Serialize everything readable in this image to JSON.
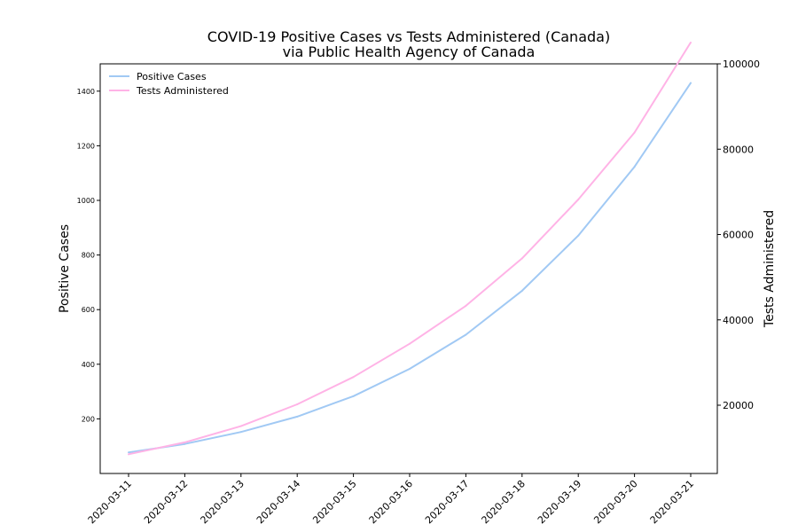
{
  "chart_data": {
    "type": "line",
    "title": "COVID-19 Positive Cases vs Tests Administered (Canada)",
    "subtitle": "via Public Health Agency of Canada",
    "xlabel": "",
    "ylabel": "Positive Cases",
    "y2label": "Tests Administered",
    "x": [
      "2020-03-11",
      "2020-03-12",
      "2020-03-13",
      "2020-03-14",
      "2020-03-15",
      "2020-03-16",
      "2020-03-17",
      "2020-03-18",
      "2020-03-19",
      "2020-03-20",
      "2020-03-21"
    ],
    "ylim": [
      0,
      1500
    ],
    "y2lim": [
      4000,
      100000
    ],
    "yticks": [
      200,
      400,
      600,
      800,
      1000,
      1200,
      1400
    ],
    "y2ticks": [
      20000,
      40000,
      60000,
      80000,
      100000
    ],
    "grid": false,
    "legend_position": "top-left",
    "series": [
      {
        "name": "Positive Cases",
        "axis": "left",
        "color": "#a1c9f4",
        "values": [
          77,
          108,
          152,
          208,
          283,
          383,
          508,
          669,
          871,
          1123,
          1430
        ]
      },
      {
        "name": "Tests Administered",
        "axis": "right",
        "color": "#ffb3e6",
        "values": [
          8500,
          11300,
          15100,
          20200,
          26600,
          34400,
          43300,
          54400,
          68200,
          83900,
          105000
        ]
      }
    ]
  }
}
